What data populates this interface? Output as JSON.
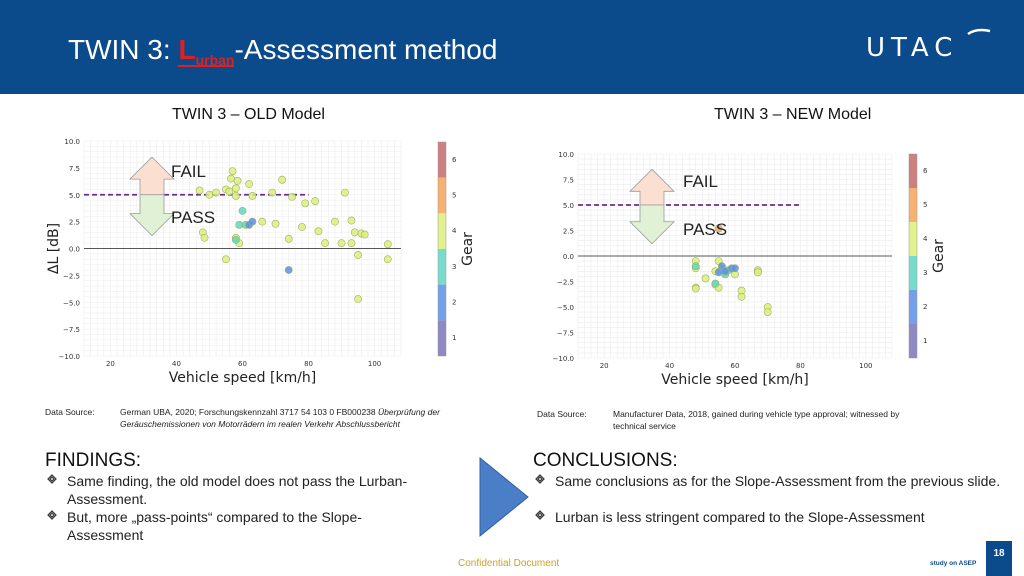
{
  "header": {
    "title_prefix": "TWIN 3: ",
    "title_L": "L",
    "title_sub": "urban",
    "title_suffix": "-Assessment method",
    "logo_text": "UTAC",
    "background_color": "#0b4a8b"
  },
  "left_panel": {
    "model_title": "TWIN 3 – OLD Model",
    "fail_label": "FAIL",
    "pass_label": "PASS",
    "data_source_label": "Data Source:",
    "data_source_text": "German UBA, 2020; Forschungskennzahl 3717 54 103 0 FB000238 ",
    "data_source_italic": "Überprüfung der Geräuschemissionen von Motorrädern im realen Verkehr Abschlussbericht"
  },
  "right_panel": {
    "model_title": "TWIN 3 – NEW Model",
    "fail_label": "FAIL",
    "pass_label": "PASS",
    "data_source_label": "Data Source:",
    "data_source_text": "Manufacturer Data, 2018, gained during vehicle type approval; witnessed by technical service"
  },
  "findings": {
    "title": "FINDINGS:",
    "bullets": [
      "Same finding, the old model does not pass the Lurban-Assessment.",
      "But, more „pass-points“ compared to the Slope-Assessment"
    ]
  },
  "conclusions": {
    "title": "CONCLUSIONS:",
    "bullets": [
      "Same conclusions as for the Slope-Assessment from the previous slide.",
      "Lurban is less stringent compared to the Slope-Assessment"
    ]
  },
  "footer": {
    "confidential": "Confidential Document",
    "page_number": "18",
    "study": "study on ASEP"
  },
  "chart_data": [
    {
      "type": "scatter",
      "title": "",
      "xlabel": "Vehicle speed [km/h]",
      "ylabel": "ΔL [dB]",
      "xlim": [
        12,
        108
      ],
      "ylim": [
        -10,
        10
      ],
      "xticks": [
        "20",
        "40",
        "60",
        "80",
        "100"
      ],
      "yticks": [
        "10.0",
        "7.5",
        "5.0",
        "2.5",
        "0.0",
        "−2.5",
        "−5.0",
        "−7.5",
        "−10.0"
      ],
      "threshold_line": {
        "y": 5.0,
        "x_from": 12,
        "x_to": 80
      },
      "zero_line": true,
      "grid": true,
      "colorbar": {
        "label": "Gear",
        "ticks": [
          "6",
          "5",
          "4",
          "3",
          "2",
          "1"
        ]
      },
      "series": [
        {
          "gear": 4,
          "points": [
            [
              47,
              5.4
            ],
            [
              50,
              5.0
            ],
            [
              52,
              5.2
            ],
            [
              55,
              5.5
            ],
            [
              56,
              5.3
            ],
            [
              56.5,
              6.5
            ],
            [
              57,
              7.2
            ],
            [
              58,
              4.9
            ],
            [
              58,
              5.6
            ],
            [
              58.5,
              6.3
            ],
            [
              62,
              6.0
            ],
            [
              63,
              4.9
            ],
            [
              69,
              5.2
            ],
            [
              72,
              6.4
            ],
            [
              75,
              4.8
            ],
            [
              79,
              4.2
            ],
            [
              82,
              4.4
            ],
            [
              78,
              2.0
            ],
            [
              70,
              2.3
            ],
            [
              74,
              0.9
            ],
            [
              83,
              1.6
            ],
            [
              85,
              0.5
            ],
            [
              88,
              2.5
            ],
            [
              90,
              0.5
            ],
            [
              91,
              5.2
            ],
            [
              93,
              2.6
            ],
            [
              93,
              0.5
            ],
            [
              94,
              1.5
            ],
            [
              96,
              1.4
            ],
            [
              97,
              1.3
            ],
            [
              104,
              0.4
            ],
            [
              55,
              -1.0
            ],
            [
              104,
              -1.0
            ],
            [
              95,
              -4.7
            ],
            [
              95,
              -0.6
            ],
            [
              66,
              2.5
            ],
            [
              48,
              1.5
            ],
            [
              48.5,
              1.0
            ],
            [
              58,
              1.0
            ],
            [
              59,
              0.5
            ]
          ]
        },
        {
          "gear": 3,
          "points": [
            [
              59,
              2.2
            ],
            [
              61,
              2.2
            ],
            [
              60,
              3.5
            ],
            [
              58,
              0.8
            ]
          ]
        },
        {
          "gear": 2,
          "points": [
            [
              62,
              2.2
            ],
            [
              63,
              2.5
            ],
            [
              74,
              -2.0
            ]
          ]
        }
      ]
    },
    {
      "type": "scatter",
      "title": "",
      "xlabel": "Vehicle speed [km/h]",
      "ylabel": "",
      "xlim": [
        12,
        108
      ],
      "ylim": [
        -10,
        10
      ],
      "xticks": [
        "20",
        "40",
        "60",
        "80",
        "100"
      ],
      "yticks": [
        "10.0",
        "7.5",
        "5.0",
        "2.5",
        "0.0",
        "−2.5",
        "−5.0",
        "−7.5",
        "−10.0"
      ],
      "threshold_line": {
        "y": 5.0,
        "x_from": 12,
        "x_to": 80
      },
      "zero_line": true,
      "grid": true,
      "colorbar": {
        "label": "Gear",
        "ticks": [
          "6",
          "5",
          "4",
          "3",
          "2",
          "1"
        ]
      },
      "series": [
        {
          "gear": 4,
          "points": [
            [
              48,
              -3.1
            ],
            [
              48,
              -3.2
            ],
            [
              51,
              -2.2
            ],
            [
              54,
              -2.8
            ],
            [
              55,
              -3.1
            ],
            [
              56,
              -1.3
            ],
            [
              57,
              -1.6
            ],
            [
              60,
              -1.8
            ],
            [
              62,
              -3.4
            ],
            [
              62,
              -4.0
            ],
            [
              67,
              -1.4
            ],
            [
              67,
              -1.6
            ],
            [
              70,
              -5.0
            ],
            [
              70,
              -5.5
            ],
            [
              48,
              -0.5
            ],
            [
              48,
              -1.2
            ],
            [
              54,
              -1.5
            ],
            [
              55,
              -0.5
            ]
          ]
        },
        {
          "gear": 3,
          "points": [
            [
              48,
              -1.0
            ],
            [
              54,
              -2.7
            ],
            [
              57,
              -1.8
            ],
            [
              58,
              -1.4
            ]
          ]
        },
        {
          "gear": 2,
          "points": [
            [
              55,
              -1.6
            ],
            [
              56,
              -1.0
            ],
            [
              59,
              -1.2
            ],
            [
              60,
              -1.2
            ],
            [
              57,
              -1.5
            ]
          ]
        },
        {
          "gear": 5,
          "points": [
            [
              55,
              2.7
            ]
          ]
        }
      ]
    }
  ]
}
